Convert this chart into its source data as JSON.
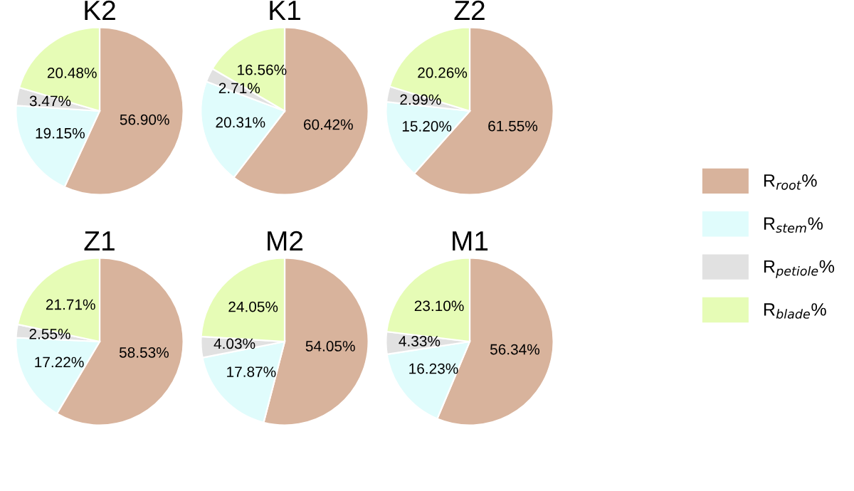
{
  "chart_data": [
    {
      "type": "pie",
      "title": "K2",
      "categories": [
        "R$_{root}$%",
        "R$_{stem}$%",
        "R$_{petiole}$%",
        "R$_{blade}$%"
      ],
      "values": [
        56.9,
        19.15,
        3.47,
        20.48
      ],
      "value_labels": [
        "56.90%",
        "19.15%",
        "3.47%",
        "20.48%"
      ],
      "colors": [
        "#d8b39c",
        "#e0fcfc",
        "#e1e1e1",
        "#e6fcb6"
      ],
      "legend": "right"
    },
    {
      "type": "pie",
      "title": "K1",
      "categories": [
        null,
        null,
        null,
        null
      ],
      "values": [
        60.42,
        20.31,
        2.71,
        16.56
      ],
      "value_labels": [
        "60.42%",
        "20.31%",
        "2.71%",
        "16.56%"
      ],
      "colors": [
        "#d8b39c",
        "#e0fcfc",
        "#e1e1e1",
        "#e6fcb6"
      ]
    },
    {
      "type": "pie",
      "title": "Z2",
      "categories": [
        null,
        null,
        null,
        null
      ],
      "values": [
        61.55,
        15.2,
        2.99,
        20.26
      ],
      "value_labels": [
        "61.55%",
        "15.20%",
        "2.99%",
        "20.26%"
      ],
      "colors": [
        "#d8b39c",
        "#e0fcfc",
        "#e1e1e1",
        "#e6fcb6"
      ]
    },
    {
      "type": "pie",
      "title": "Z1",
      "categories": [
        null,
        null,
        null,
        null
      ],
      "values": [
        58.53,
        17.22,
        2.55,
        21.71
      ],
      "value_labels": [
        "58.53%",
        "17.22%",
        "2.55%",
        "21.71%"
      ],
      "colors": [
        "#d8b39c",
        "#e0fcfc",
        "#e1e1e1",
        "#e6fcb6"
      ]
    },
    {
      "type": "pie",
      "title": "M2",
      "categories": [
        null,
        null,
        null,
        null
      ],
      "values": [
        54.05,
        17.87,
        4.03,
        24.05
      ],
      "value_labels": [
        "54.05%",
        "17.87%",
        "4.03%",
        "24.05%"
      ],
      "colors": [
        "#d8b39c",
        "#e0fcfc",
        "#e1e1e1",
        "#e6fcb6"
      ]
    },
    {
      "type": "pie",
      "title": "M1",
      "categories": [
        null,
        null,
        null,
        null
      ],
      "values": [
        56.34,
        16.23,
        4.33,
        23.1
      ],
      "value_labels": [
        "56.34%",
        "16.23%",
        "4.33%",
        "23.10%"
      ],
      "colors": [
        "#d8b39c",
        "#e0fcfc",
        "#e1e1e1",
        "#e6fcb6"
      ]
    }
  ]
}
